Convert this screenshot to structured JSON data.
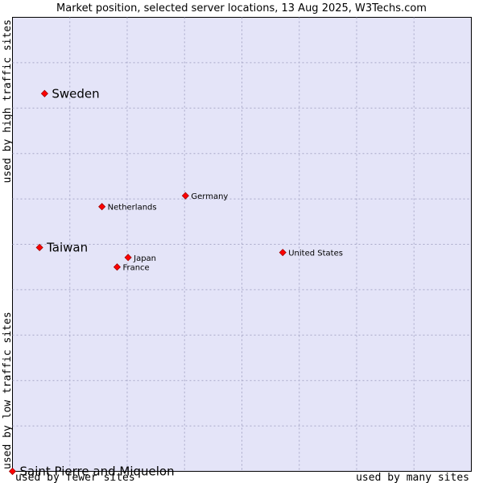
{
  "chart_data": {
    "type": "scatter",
    "title": "Market position, selected server locations, 13 Aug 2025, W3Techs.com",
    "x_label_left": "used by fewer sites",
    "x_label_right": "used by many sites",
    "y_label_bottom": "used by low traffic sites",
    "y_label_top": "used by high traffic sites",
    "xlim": [
      0,
      100
    ],
    "ylim": [
      0,
      100
    ],
    "grid": true,
    "colors": {
      "plot_background": "#e4e4f8",
      "grid": "#a8a8c8",
      "marker": "#ff0000",
      "marker_stroke": "#a00000",
      "border": "#000000"
    },
    "points": [
      {
        "name": "Sweden",
        "x": 7.0,
        "y": 83.2,
        "emphasis": true
      },
      {
        "name": "Taiwan",
        "x": 5.9,
        "y": 49.3,
        "emphasis": true
      },
      {
        "name": "Saint Pierre and Miquelon",
        "x": 0.0,
        "y": 0.0,
        "emphasis": true
      },
      {
        "name": "Germany",
        "x": 37.7,
        "y": 60.7,
        "emphasis": false
      },
      {
        "name": "Netherlands",
        "x": 19.5,
        "y": 58.3,
        "emphasis": false
      },
      {
        "name": "United States",
        "x": 58.9,
        "y": 48.2,
        "emphasis": false
      },
      {
        "name": "Japan",
        "x": 25.2,
        "y": 47.1,
        "emphasis": false
      },
      {
        "name": "France",
        "x": 22.8,
        "y": 45.0,
        "emphasis": false
      }
    ]
  }
}
